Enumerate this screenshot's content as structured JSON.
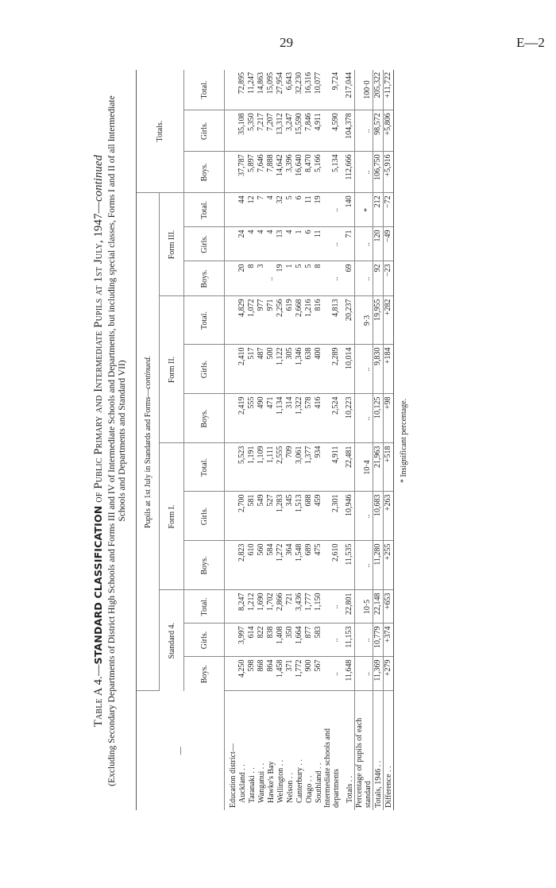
{
  "page": {
    "number": "29",
    "code": "E—2"
  },
  "title": {
    "prefix": "Table A 4.—",
    "bold": "STANDARD CLASSIFICATION",
    "rest": " of Public Primary and Intermediate Pupils at 1st July, 1947—",
    "italic": "continued",
    "subtitle": "(Excluding Secondary Departments of District High Schools and Forms III and IV of Intermediate Schools and Departments, but including special classes, Forms I and II of all Intermediate Schools and Departments and Standard VII)"
  },
  "header": {
    "stub": "—",
    "super": "Pupils at 1st July in Standards and Forms—",
    "super_italic": "continued.",
    "totals": "Totals.",
    "groups": [
      "Standard 4.",
      "Form I.",
      "Form II.",
      "Form III."
    ],
    "subcols": [
      "Boys.",
      "Girls.",
      "Total."
    ]
  },
  "rows": [
    {
      "label": "Education district—",
      "values": [],
      "type": "heading"
    },
    {
      "label": "Auckland . .",
      "values": [
        "4,250",
        "3,997",
        "8,247",
        "2,823",
        "2,700",
        "5,523",
        "2,419",
        "2,410",
        "4,829",
        "20",
        "24",
        "44",
        "37,787",
        "35,108",
        "72,895"
      ],
      "type": "indent"
    },
    {
      "label": "Taranaki . .",
      "values": [
        "598",
        "614",
        "1,212",
        "610",
        "581",
        "1,191",
        "555",
        "517",
        "1,072",
        "8",
        "4",
        "12",
        "5,897",
        "5,350",
        "11,247"
      ],
      "type": "indent"
    },
    {
      "label": "Wanganui . .",
      "values": [
        "868",
        "822",
        "1,690",
        "560",
        "549",
        "1,109",
        "490",
        "487",
        "977",
        "3",
        "4",
        "7",
        "7,646",
        "7,217",
        "14,863"
      ],
      "type": "indent"
    },
    {
      "label": "Hawke's Bay",
      "values": [
        "864",
        "838",
        "1,702",
        "584",
        "527",
        "1,111",
        "471",
        "500",
        "971",
        "..",
        "4",
        "4",
        "7,888",
        "7,207",
        "15,095"
      ],
      "type": "indent"
    },
    {
      "label": "Wellington . .",
      "values": [
        "1,458",
        "1,408",
        "2,866",
        "1,272",
        "1,283",
        "2,555",
        "1,134",
        "1,122",
        "2,256",
        "19",
        "13",
        "32",
        "14,642",
        "13,312",
        "27,954"
      ],
      "type": "indent"
    },
    {
      "label": "Nelson . .",
      "values": [
        "371",
        "350",
        "721",
        "364",
        "345",
        "709",
        "314",
        "305",
        "619",
        "1",
        "4",
        "5",
        "3,396",
        "3,247",
        "6,643"
      ],
      "type": "indent"
    },
    {
      "label": "Canterbury . .",
      "values": [
        "1,772",
        "1,664",
        "3,436",
        "1,548",
        "1,513",
        "3,061",
        "1,322",
        "1,346",
        "2,668",
        "5",
        "1",
        "6",
        "16,640",
        "15,590",
        "32,230"
      ],
      "type": "indent"
    },
    {
      "label": "Otago . .",
      "values": [
        "900",
        "877",
        "1,777",
        "689",
        "688",
        "1,377",
        "578",
        "638",
        "1,216",
        "5",
        "6",
        "11",
        "8,470",
        "7,846",
        "16,316"
      ],
      "type": "indent"
    },
    {
      "label": "Southland . .",
      "values": [
        "567",
        "583",
        "1,150",
        "475",
        "459",
        "934",
        "416",
        "400",
        "816",
        "8",
        "11",
        "19",
        "5,166",
        "4,911",
        "10,077"
      ],
      "type": "indent"
    },
    {
      "label": "Intermediate schools and departments",
      "values": [
        "..",
        "..",
        "..",
        "2,610",
        "2,301",
        "4,911",
        "2,524",
        "2,289",
        "4,813",
        "..",
        "..",
        "..",
        "5,134",
        "4,590",
        "9,724"
      ],
      "type": "plain"
    },
    {
      "label": "Totals . .",
      "values": [
        "11,648",
        "11,153",
        "22,801",
        "11,535",
        "10,946",
        "22,481",
        "10,223",
        "10,014",
        "20,237",
        "69",
        "71",
        "140",
        "112,666",
        "104,378",
        "217,044"
      ],
      "type": "totals"
    },
    {
      "label": "Percentage of pupils of each standard",
      "values": [
        "..",
        "..",
        "10·5",
        "..",
        "..",
        "10·4",
        "..",
        "..",
        "9·3",
        "..",
        "..",
        "*",
        "..",
        "..",
        "100·0"
      ],
      "type": "pct"
    },
    {
      "label": "Totals, 1946 . .",
      "values": [
        "11,369",
        "10,779",
        "22,148",
        "11,280",
        "10,683",
        "21,963",
        "10,125",
        "9,830",
        "19,955",
        "92",
        "120",
        "212",
        "106,750",
        "98,572",
        "205,322"
      ],
      "type": "sep"
    },
    {
      "label": "Difference . .",
      "values": [
        "+279",
        "+374",
        "+653",
        "+255",
        "+263",
        "+518",
        "+98",
        "+184",
        "+282",
        "−23",
        "−49",
        "−72",
        "+5,916",
        "+5,806",
        "+11,722"
      ],
      "type": "last"
    }
  ],
  "footnote": "* Insignificant percentage."
}
